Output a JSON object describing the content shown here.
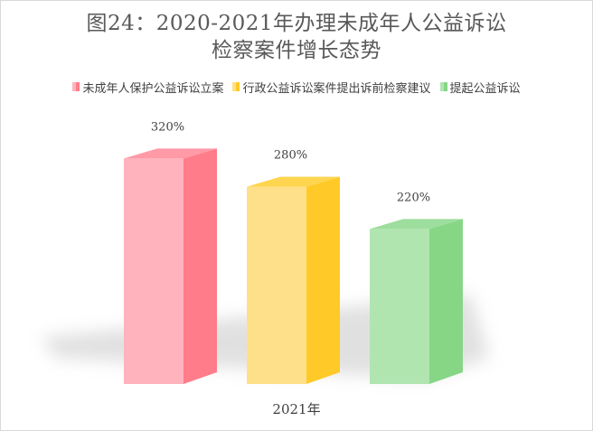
{
  "title_lines": [
    "图24：2020-2021年办理未成年人公益诉讼",
    "检察案件增长态势"
  ],
  "chart_data": {
    "type": "bar",
    "title": "图24：2020-2021年办理未成年人公益诉讼检察案件增长态势",
    "categories": [
      "2021年"
    ],
    "series": [
      {
        "name": "未成年人保护公益诉讼立案",
        "values": [
          320
        ],
        "label": "320%",
        "color_light": "#ffb3bd",
        "color_dark": "#ff7d8b",
        "color_top": "#ff9aa6"
      },
      {
        "name": "行政公益诉讼案件提出诉前检察建议",
        "values": [
          280
        ],
        "label": "280%",
        "color_light": "#ffe08a",
        "color_dark": "#ffca28",
        "color_top": "#ffd54f"
      },
      {
        "name": "提起公益诉讼",
        "values": [
          220
        ],
        "label": "220%",
        "color_light": "#b0e5b0",
        "color_dark": "#86d686",
        "color_top": "#9ddd9d"
      }
    ],
    "xlabel": "",
    "ylabel": "",
    "ylim": [
      0,
      400
    ],
    "grid": false,
    "legend_position": "top"
  }
}
